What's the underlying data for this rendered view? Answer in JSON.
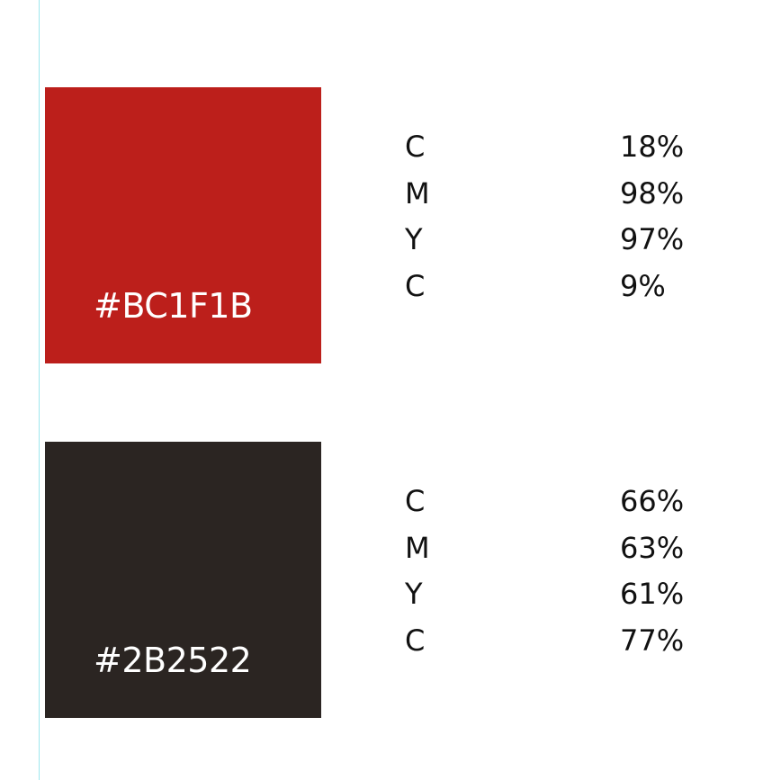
{
  "palette": [
    {
      "hex": "#BC1F1B",
      "color": "#BC1F1B",
      "cmyk": [
        {
          "label": "C",
          "value": "18%"
        },
        {
          "label": "M",
          "value": "98%"
        },
        {
          "label": "Y",
          "value": "97%"
        },
        {
          "label": "C",
          "value": "9%"
        }
      ]
    },
    {
      "hex": "#2B2522",
      "color": "#2B2522",
      "cmyk": [
        {
          "label": "C",
          "value": "66%"
        },
        {
          "label": "M",
          "value": "63%"
        },
        {
          "label": "Y",
          "value": "61%"
        },
        {
          "label": "C",
          "value": "77%"
        }
      ]
    }
  ]
}
